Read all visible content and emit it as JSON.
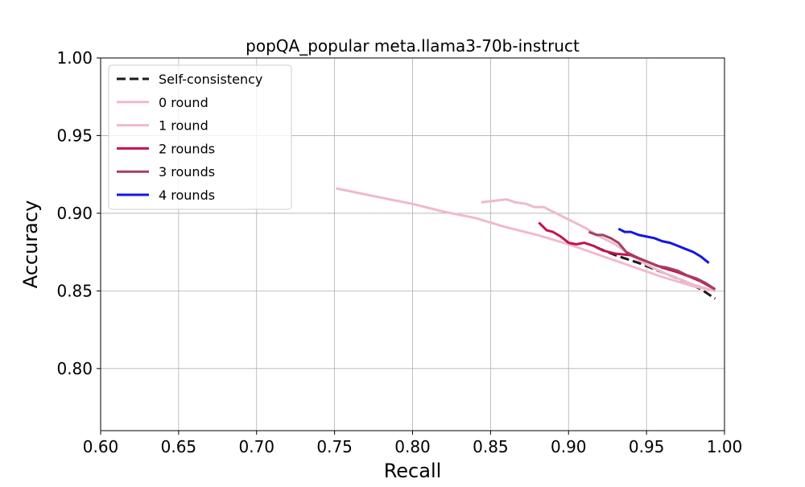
{
  "chart_data": {
    "type": "line",
    "title": "popQA_popular meta.llama3-70b-instruct",
    "xlabel": "Recall",
    "ylabel": "Accuracy",
    "xlim": [
      0.6,
      1.0
    ],
    "ylim": [
      0.76,
      1.0
    ],
    "grid": true,
    "legend_position": "top-left",
    "x_ticks": [
      {
        "value": 0.6,
        "label": "0.60"
      },
      {
        "value": 0.65,
        "label": "0.65"
      },
      {
        "value": 0.7,
        "label": "0.70"
      },
      {
        "value": 0.75,
        "label": "0.75"
      },
      {
        "value": 0.8,
        "label": "0.80"
      },
      {
        "value": 0.85,
        "label": "0.85"
      },
      {
        "value": 0.9,
        "label": "0.90"
      },
      {
        "value": 0.95,
        "label": "0.95"
      },
      {
        "value": 1.0,
        "label": "1.00"
      }
    ],
    "y_ticks": [
      {
        "value": 0.8,
        "label": "0.80"
      },
      {
        "value": 0.85,
        "label": "0.85"
      },
      {
        "value": 0.9,
        "label": "0.90"
      },
      {
        "value": 0.95,
        "label": "0.95"
      },
      {
        "value": 1.0,
        "label": "1.00"
      }
    ],
    "series": [
      {
        "name": "Self-consistency",
        "color": "#1a1a1a",
        "dash": "dashed",
        "points": [
          [
            0.918,
            0.878
          ],
          [
            0.93,
            0.873
          ],
          [
            0.945,
            0.868
          ],
          [
            0.96,
            0.862
          ],
          [
            0.975,
            0.856
          ],
          [
            0.985,
            0.851
          ],
          [
            0.994,
            0.845
          ]
        ]
      },
      {
        "name": "0 round",
        "color": "#f1b8cf",
        "dash": "solid",
        "points": [
          [
            0.751,
            0.916
          ],
          [
            0.78,
            0.91
          ],
          [
            0.8,
            0.906
          ],
          [
            0.82,
            0.901
          ],
          [
            0.84,
            0.897
          ],
          [
            0.86,
            0.891
          ],
          [
            0.88,
            0.886
          ],
          [
            0.9,
            0.88
          ],
          [
            0.92,
            0.873
          ],
          [
            0.94,
            0.866
          ],
          [
            0.96,
            0.859
          ],
          [
            0.98,
            0.853
          ],
          [
            0.994,
            0.85
          ]
        ]
      },
      {
        "name": "1 round",
        "color": "#efb9ce",
        "dash": "solid",
        "points": [
          [
            0.844,
            0.907
          ],
          [
            0.852,
            0.908
          ],
          [
            0.86,
            0.909
          ],
          [
            0.866,
            0.907
          ],
          [
            0.873,
            0.906
          ],
          [
            0.878,
            0.904
          ],
          [
            0.884,
            0.904
          ],
          [
            0.89,
            0.901
          ],
          [
            0.9,
            0.896
          ],
          [
            0.91,
            0.891
          ],
          [
            0.92,
            0.885
          ],
          [
            0.93,
            0.88
          ],
          [
            0.94,
            0.873
          ],
          [
            0.95,
            0.867
          ],
          [
            0.96,
            0.862
          ],
          [
            0.97,
            0.858
          ],
          [
            0.98,
            0.854
          ],
          [
            0.994,
            0.85
          ]
        ]
      },
      {
        "name": "2 rounds",
        "color": "#c8104f",
        "dash": "solid",
        "points": [
          [
            0.881,
            0.894
          ],
          [
            0.886,
            0.889
          ],
          [
            0.89,
            0.888
          ],
          [
            0.895,
            0.885
          ],
          [
            0.9,
            0.881
          ],
          [
            0.905,
            0.88
          ],
          [
            0.91,
            0.881
          ],
          [
            0.916,
            0.879
          ],
          [
            0.922,
            0.876
          ],
          [
            0.93,
            0.874
          ],
          [
            0.94,
            0.873
          ],
          [
            0.95,
            0.869
          ],
          [
            0.96,
            0.865
          ],
          [
            0.97,
            0.862
          ],
          [
            0.978,
            0.859
          ],
          [
            0.985,
            0.856
          ],
          [
            0.994,
            0.851
          ]
        ]
      },
      {
        "name": "3 rounds",
        "color": "#a3405f",
        "dash": "solid",
        "points": [
          [
            0.913,
            0.888
          ],
          [
            0.918,
            0.886
          ],
          [
            0.922,
            0.886
          ],
          [
            0.927,
            0.884
          ],
          [
            0.932,
            0.881
          ],
          [
            0.937,
            0.875
          ],
          [
            0.943,
            0.872
          ],
          [
            0.95,
            0.869
          ],
          [
            0.957,
            0.866
          ],
          [
            0.963,
            0.865
          ],
          [
            0.97,
            0.863
          ],
          [
            0.976,
            0.86
          ],
          [
            0.982,
            0.858
          ],
          [
            0.988,
            0.855
          ],
          [
            0.994,
            0.851
          ]
        ]
      },
      {
        "name": "4 rounds",
        "color": "#1414e6",
        "dash": "solid",
        "points": [
          [
            0.932,
            0.89
          ],
          [
            0.936,
            0.888
          ],
          [
            0.94,
            0.888
          ],
          [
            0.945,
            0.886
          ],
          [
            0.95,
            0.885
          ],
          [
            0.955,
            0.884
          ],
          [
            0.96,
            0.882
          ],
          [
            0.965,
            0.881
          ],
          [
            0.97,
            0.879
          ],
          [
            0.975,
            0.877
          ],
          [
            0.98,
            0.875
          ],
          [
            0.985,
            0.872
          ],
          [
            0.99,
            0.868
          ]
        ]
      }
    ]
  }
}
